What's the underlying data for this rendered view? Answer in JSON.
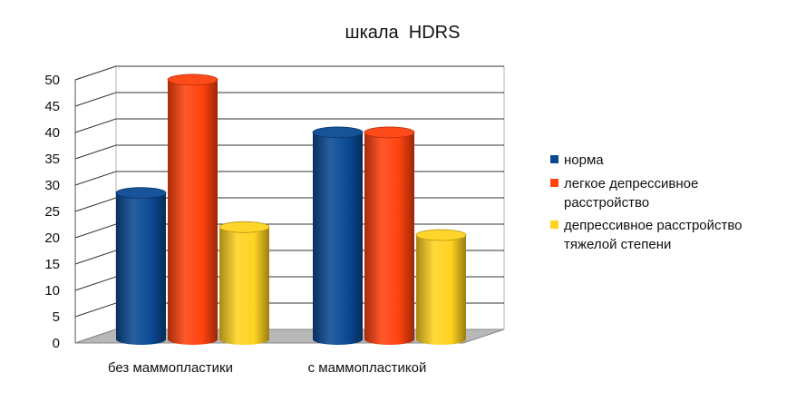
{
  "chart_data": {
    "type": "bar",
    "title": "шкала  HDRS",
    "xlabel": "",
    "ylabel": "",
    "ylim": [
      0,
      50
    ],
    "yticks": [
      0,
      5,
      10,
      15,
      20,
      25,
      30,
      35,
      40,
      45,
      50
    ],
    "categories": [
      "без маммопластики",
      "с маммопластикой"
    ],
    "series": [
      {
        "name": "норма",
        "values": [
          28,
          39.5
        ],
        "color": "#0a4a94"
      },
      {
        "name": "легкое депрессивное расстройство",
        "legend_lines": [
          "легкое депрессивное",
          "расстройство"
        ],
        "values": [
          49.5,
          39.5
        ],
        "color": "#ff420e"
      },
      {
        "name": "депрессивное расстройство тяжелой степени",
        "legend_lines": [
          "депрессивное расстройство",
          "тяжелой степени"
        ],
        "values": [
          21.5,
          20
        ],
        "color": "#ffd320"
      }
    ],
    "grid": true,
    "legend_position": "right",
    "style": "3d-cylinder"
  }
}
